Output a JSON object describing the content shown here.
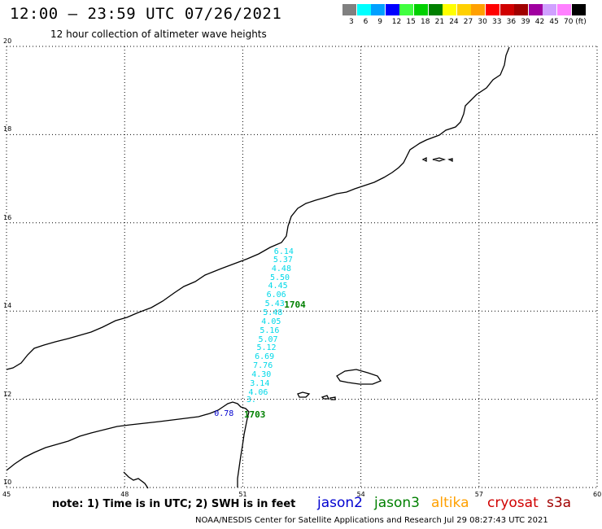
{
  "header": {
    "title": "12:00 – 23:59 UTC 07/26/2021",
    "subtitle": "12 hour collection of altimeter wave heights"
  },
  "colorbar": {
    "unit": "(ft)",
    "bins": [
      {
        "label": "3",
        "color": "#808080"
      },
      {
        "label": "6",
        "color": "#00ffff"
      },
      {
        "label": "9",
        "color": "#00a0ff"
      },
      {
        "label": "12",
        "color": "#0000ff"
      },
      {
        "label": "15",
        "color": "#40ff40"
      },
      {
        "label": "18",
        "color": "#00d000"
      },
      {
        "label": "21",
        "color": "#008000"
      },
      {
        "label": "24",
        "color": "#ffff00"
      },
      {
        "label": "27",
        "color": "#ffd000"
      },
      {
        "label": "30",
        "color": "#ffa000"
      },
      {
        "label": "33",
        "color": "#ff0000"
      },
      {
        "label": "36",
        "color": "#d00000"
      },
      {
        "label": "39",
        "color": "#a00000"
      },
      {
        "label": "42",
        "color": "#a000a0"
      },
      {
        "label": "45",
        "color": "#d0a0ff"
      },
      {
        "label": "70",
        "color": "#ff80ff"
      },
      {
        "label": "",
        "color": "#000000"
      }
    ]
  },
  "map": {
    "lon_range": [
      45,
      60
    ],
    "lat_range": [
      10,
      20
    ],
    "lon_ticks": [
      "45",
      "48",
      "51",
      "54",
      "57",
      "60"
    ],
    "lat_ticks": [
      "20",
      "18",
      "16",
      "14",
      "12",
      "10"
    ],
    "grid": "dotted",
    "swh_points": [
      {
        "lon": 52.0,
        "lat": 15.32,
        "value": "6.14",
        "sat": "jason3"
      },
      {
        "lon": 51.98,
        "lat": 15.12,
        "value": "5.37",
        "sat": "jason3"
      },
      {
        "lon": 51.94,
        "lat": 14.92,
        "value": "4.48",
        "sat": "jason3"
      },
      {
        "lon": 51.9,
        "lat": 14.72,
        "value": "5.50",
        "sat": "jason3"
      },
      {
        "lon": 51.85,
        "lat": 14.53,
        "value": "4.45",
        "sat": "jason3"
      },
      {
        "lon": 51.81,
        "lat": 14.33,
        "value": "6.06",
        "sat": "jason3"
      },
      {
        "lon": 51.77,
        "lat": 14.13,
        "value": "5.43",
        "sat": "jason3"
      },
      {
        "lon": 51.72,
        "lat": 13.93,
        "value": "5.48",
        "sat": "jason3"
      },
      {
        "lon": 51.68,
        "lat": 13.73,
        "value": "4.05",
        "sat": "jason3"
      },
      {
        "lon": 51.64,
        "lat": 13.53,
        "value": "5.16",
        "sat": "jason3"
      },
      {
        "lon": 51.6,
        "lat": 13.33,
        "value": "5.07",
        "sat": "jason3"
      },
      {
        "lon": 51.56,
        "lat": 13.13,
        "value": "5.12",
        "sat": "jason3"
      },
      {
        "lon": 51.51,
        "lat": 12.93,
        "value": "6.69",
        "sat": "jason3"
      },
      {
        "lon": 51.47,
        "lat": 12.73,
        "value": "7.76",
        "sat": "jason3"
      },
      {
        "lon": 51.43,
        "lat": 12.53,
        "value": "4.30",
        "sat": "jason3"
      },
      {
        "lon": 51.39,
        "lat": 12.33,
        "value": "3.14",
        "sat": "jason3"
      },
      {
        "lon": 51.35,
        "lat": 12.13,
        "value": "4.06",
        "sat": "jason3"
      },
      {
        "lon": 51.3,
        "lat": 11.95,
        "value": "3.",
        "sat": "jason3"
      },
      {
        "lon": 50.48,
        "lat": 11.65,
        "value": "0.78",
        "sat": "jason2"
      }
    ],
    "track_labels": [
      {
        "lon": 52.05,
        "lat": 14.13,
        "text": "1704"
      },
      {
        "lon": 51.03,
        "lat": 11.65,
        "text": "1703"
      }
    ]
  },
  "footer": {
    "note": "note: 1) Time is in UTC; 2) SWH is in feet",
    "credit": "NOAA/NESDIS Center for Satellite Applications and Research   Jul 29 08:27:43 UTC 2021",
    "satellites": [
      {
        "name": "jason2",
        "color": "#0000d0"
      },
      {
        "name": "jason3",
        "color": "#008000"
      },
      {
        "name": "altika",
        "color": "#ffa000"
      },
      {
        "name": "cryosat",
        "color": "#d00000"
      },
      {
        "name": "s3a",
        "color": "#a00000"
      }
    ]
  }
}
